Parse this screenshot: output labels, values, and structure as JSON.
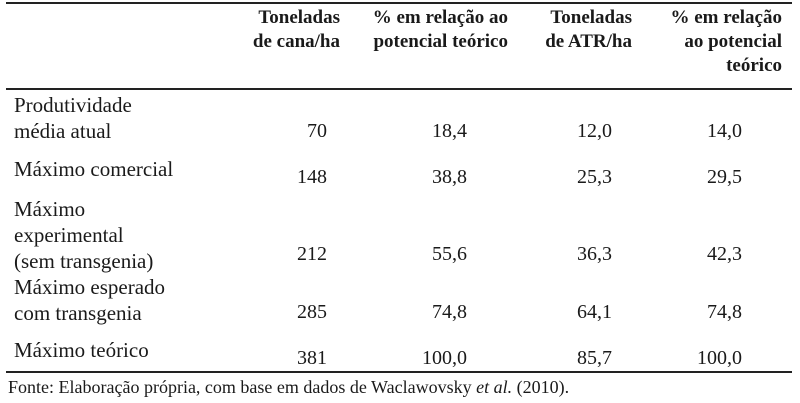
{
  "table": {
    "headers": [
      "",
      "Toneladas\nde cana/ha",
      "% em relação ao\npotencial teórico",
      "Toneladas\nde ATR/ha",
      "% em relação\nao potencial\nteórico"
    ],
    "rows": [
      {
        "label": "Produtividade\nmédia atual",
        "values": [
          "70",
          "18,4",
          "12,0",
          "14,0"
        ]
      },
      {
        "label": "Máximo comercial",
        "values": [
          "148",
          "38,8",
          "25,3",
          "29,5"
        ]
      },
      {
        "label": "Máximo\nexperimental\n(sem transgenia)",
        "values": [
          "212",
          "55,6",
          "36,3",
          "42,3"
        ]
      },
      {
        "label": "Máximo esperado\ncom transgenia",
        "values": [
          "285",
          "74,8",
          "64,1",
          "74,8"
        ]
      },
      {
        "label": "Máximo teórico",
        "values": [
          "381",
          "100,0",
          "85,7",
          "100,0"
        ]
      }
    ]
  },
  "source": {
    "prefix": "Fonte: Elaboração própria, com base em dados de Waclawovsky ",
    "etal": "et al.",
    "suffix": " (2010)."
  }
}
